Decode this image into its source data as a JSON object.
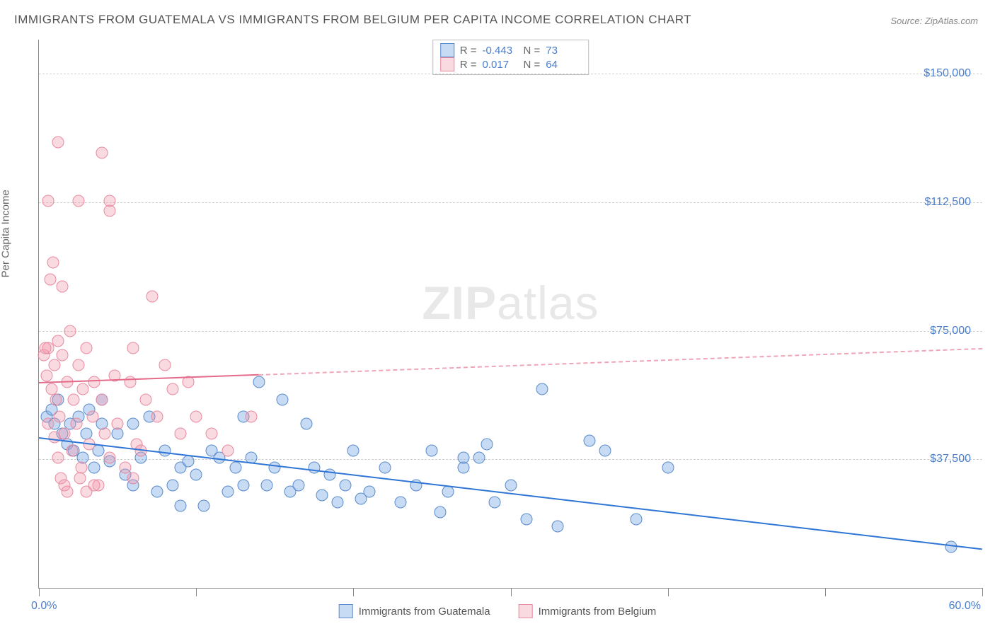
{
  "title": "IMMIGRANTS FROM GUATEMALA VS IMMIGRANTS FROM BELGIUM PER CAPITA INCOME CORRELATION CHART",
  "source": "Source: ZipAtlas.com",
  "y_axis_label": "Per Capita Income",
  "watermark_bold": "ZIP",
  "watermark_rest": "atlas",
  "chart": {
    "type": "scatter",
    "xlim": [
      0,
      60
    ],
    "ylim": [
      0,
      160000
    ],
    "x_unit": "%",
    "y_unit": "$",
    "y_ticks": [
      37500,
      75000,
      112500,
      150000
    ],
    "y_tick_labels": [
      "$37,500",
      "$75,000",
      "$112,500",
      "$150,000"
    ],
    "x_tick_positions": [
      0,
      10,
      20,
      30,
      40,
      50,
      60
    ],
    "x_min_label": "0.0%",
    "x_max_label": "60.0%",
    "background_color": "#ffffff",
    "grid_color": "#d0d0d0",
    "marker_size": 17,
    "series": [
      {
        "name": "Immigrants from Guatemala",
        "color_fill": "rgba(130,175,230,0.45)",
        "color_stroke": "#5a8bc9",
        "R": "-0.443",
        "N": "73",
        "trend": {
          "x1": 0,
          "y1": 44000,
          "x2": 60,
          "y2": 11500,
          "solid_until_x": 60,
          "color": "#2e75d6"
        },
        "points": [
          [
            0.5,
            50000
          ],
          [
            0.8,
            52000
          ],
          [
            1.0,
            48000
          ],
          [
            1.2,
            55000
          ],
          [
            1.5,
            45000
          ],
          [
            1.8,
            42000
          ],
          [
            2.0,
            48000
          ],
          [
            2.2,
            40000
          ],
          [
            2.5,
            50000
          ],
          [
            2.8,
            38000
          ],
          [
            3.0,
            45000
          ],
          [
            3.2,
            52000
          ],
          [
            3.5,
            35000
          ],
          [
            3.8,
            40000
          ],
          [
            4.0,
            48000
          ],
          [
            4.5,
            37000
          ],
          [
            5.0,
            45000
          ],
          [
            5.5,
            33000
          ],
          [
            6.0,
            48000
          ],
          [
            6.5,
            38000
          ],
          [
            7.0,
            50000
          ],
          [
            7.5,
            28000
          ],
          [
            8.0,
            40000
          ],
          [
            8.5,
            30000
          ],
          [
            9.0,
            35000
          ],
          [
            9.5,
            37000
          ],
          [
            10.0,
            33000
          ],
          [
            10.5,
            24000
          ],
          [
            11.0,
            40000
          ],
          [
            11.5,
            38000
          ],
          [
            12.0,
            28000
          ],
          [
            12.5,
            35000
          ],
          [
            13.0,
            30000
          ],
          [
            13.5,
            38000
          ],
          [
            14.0,
            60000
          ],
          [
            14.5,
            30000
          ],
          [
            15.0,
            35000
          ],
          [
            15.5,
            55000
          ],
          [
            16.0,
            28000
          ],
          [
            16.5,
            30000
          ],
          [
            17.5,
            35000
          ],
          [
            17.0,
            48000
          ],
          [
            18.0,
            27000
          ],
          [
            18.5,
            33000
          ],
          [
            19.0,
            25000
          ],
          [
            19.5,
            30000
          ],
          [
            20.0,
            40000
          ],
          [
            20.5,
            26000
          ],
          [
            21.0,
            28000
          ],
          [
            22.0,
            35000
          ],
          [
            23.0,
            25000
          ],
          [
            24.0,
            30000
          ],
          [
            25.0,
            40000
          ],
          [
            25.5,
            22000
          ],
          [
            26.0,
            28000
          ],
          [
            27.0,
            35000
          ],
          [
            28.0,
            38000
          ],
          [
            29.0,
            25000
          ],
          [
            30.0,
            30000
          ],
          [
            31.0,
            20000
          ],
          [
            32.0,
            58000
          ],
          [
            33.0,
            18000
          ],
          [
            35.0,
            43000
          ],
          [
            36.0,
            40000
          ],
          [
            38.0,
            20000
          ],
          [
            40.0,
            35000
          ],
          [
            27.0,
            38000
          ],
          [
            28.5,
            42000
          ],
          [
            13.0,
            50000
          ],
          [
            9.0,
            24000
          ],
          [
            6.0,
            30000
          ],
          [
            4.0,
            55000
          ],
          [
            58.0,
            12000
          ]
        ]
      },
      {
        "name": "Immigrants from Belgium",
        "color_fill": "rgba(240,150,170,0.35)",
        "color_stroke": "#e88aa0",
        "R": "0.017",
        "N": "64",
        "trend": {
          "x1": 0,
          "y1": 60000,
          "x2": 60,
          "y2": 70000,
          "solid_until_x": 14,
          "color": "#e56b8a"
        },
        "points": [
          [
            0.3,
            68000
          ],
          [
            0.5,
            62000
          ],
          [
            0.6,
            70000
          ],
          [
            0.8,
            58000
          ],
          [
            1.0,
            65000
          ],
          [
            1.1,
            55000
          ],
          [
            1.2,
            72000
          ],
          [
            1.3,
            50000
          ],
          [
            1.5,
            68000
          ],
          [
            1.6,
            45000
          ],
          [
            1.8,
            60000
          ],
          [
            2.0,
            75000
          ],
          [
            2.1,
            40000
          ],
          [
            2.2,
            55000
          ],
          [
            2.4,
            48000
          ],
          [
            2.5,
            65000
          ],
          [
            2.7,
            35000
          ],
          [
            2.8,
            58000
          ],
          [
            3.0,
            70000
          ],
          [
            3.2,
            42000
          ],
          [
            3.4,
            50000
          ],
          [
            3.5,
            60000
          ],
          [
            3.8,
            30000
          ],
          [
            4.0,
            55000
          ],
          [
            4.2,
            45000
          ],
          [
            4.5,
            38000
          ],
          [
            4.8,
            62000
          ],
          [
            5.0,
            48000
          ],
          [
            5.5,
            35000
          ],
          [
            5.8,
            60000
          ],
          [
            6.0,
            70000
          ],
          [
            6.2,
            42000
          ],
          [
            6.5,
            40000
          ],
          [
            6.8,
            55000
          ],
          [
            7.2,
            85000
          ],
          [
            7.5,
            50000
          ],
          [
            8.0,
            65000
          ],
          [
            8.5,
            58000
          ],
          [
            9.0,
            45000
          ],
          [
            9.5,
            60000
          ],
          [
            10.0,
            50000
          ],
          [
            0.7,
            90000
          ],
          [
            0.9,
            95000
          ],
          [
            1.5,
            88000
          ],
          [
            0.4,
            70000
          ],
          [
            0.6,
            48000
          ],
          [
            1.0,
            44000
          ],
          [
            1.2,
            38000
          ],
          [
            1.4,
            32000
          ],
          [
            1.6,
            30000
          ],
          [
            1.8,
            28000
          ],
          [
            2.6,
            32000
          ],
          [
            3.0,
            28000
          ],
          [
            3.5,
            30000
          ],
          [
            1.2,
            130000
          ],
          [
            2.5,
            113000
          ],
          [
            4.0,
            127000
          ],
          [
            4.5,
            113000
          ],
          [
            4.5,
            110000
          ],
          [
            0.6,
            113000
          ],
          [
            13.5,
            50000
          ],
          [
            11.0,
            45000
          ],
          [
            12.0,
            40000
          ],
          [
            6.0,
            32000
          ]
        ]
      }
    ]
  },
  "corr_legend_label_R": "R =",
  "corr_legend_label_N": "N ="
}
